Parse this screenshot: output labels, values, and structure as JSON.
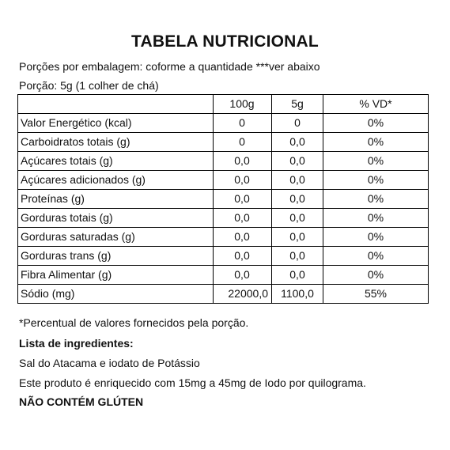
{
  "title": "TABELA NUTRICIONAL",
  "portions_line": "Porções por embalagem:  coforme a quantidade ***ver abaixo",
  "portion_line": "Porção: 5g (1 colher de chá)",
  "table": {
    "headers": [
      "",
      "100g",
      "5g",
      "% VD*"
    ],
    "rows": [
      {
        "label": "Valor Energético (kcal)",
        "v100": "0",
        "v5": "0",
        "vd": "0%"
      },
      {
        "label": "Carboidratos totais (g)",
        "v100": "0",
        "v5": "0,0",
        "vd": "0%"
      },
      {
        "label": "Açúcares totais (g)",
        "v100": "0,0",
        "v5": "0,0",
        "vd": "0%"
      },
      {
        "label": "Açúcares adicionados (g)",
        "v100": "0,0",
        "v5": "0,0",
        "vd": "0%"
      },
      {
        "label": "Proteínas (g)",
        "v100": "0,0",
        "v5": "0,0",
        "vd": "0%"
      },
      {
        "label": "Gorduras totais (g)",
        "v100": "0,0",
        "v5": "0,0",
        "vd": "0%"
      },
      {
        "label": "Gorduras saturadas (g)",
        "v100": "0,0",
        "v5": "0,0",
        "vd": "0%"
      },
      {
        "label": "Gorduras trans (g)",
        "v100": "0,0",
        "v5": "0,0",
        "vd": "0%"
      },
      {
        "label": "Fibra Alimentar (g)",
        "v100": "0,0",
        "v5": "0,0",
        "vd": "0%"
      },
      {
        "label": "Sódio (mg)",
        "v100": "22000,0",
        "v5": "1100,0",
        "vd": "55%"
      }
    ]
  },
  "footnote": "*Percentual de valores fornecidos pela porção.",
  "ingredients_heading": "Lista de ingredientes:",
  "ingredients": "Sal do Atacama e iodato de Potássio",
  "iodine_note": "Este produto é enriquecido com 15mg a 45mg de Iodo por quilograma.",
  "gluten_warning": "NÃO CONTÉM GLÚTEN"
}
